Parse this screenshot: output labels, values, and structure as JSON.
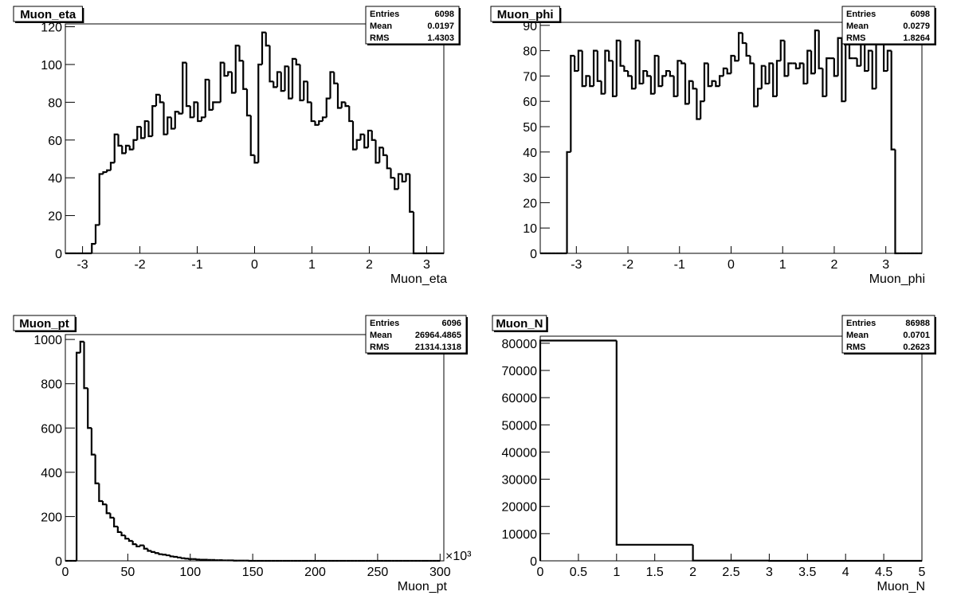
{
  "chart_data": [
    {
      "type": "histogram",
      "title": "Muon_eta",
      "x_label": "Muon_eta",
      "color": "#000000",
      "stats": [
        {
          "label": "Entries",
          "value": 6098
        },
        {
          "label": "Mean",
          "value": 0.0197
        },
        {
          "label": "RMS",
          "value": 1.4303
        }
      ],
      "bins": [
        -3.3,
        -3.234,
        -3.168,
        -3.102,
        -3.036,
        -2.97,
        -2.904,
        -2.838,
        -2.772,
        -2.706,
        -2.64,
        -2.574,
        -2.508,
        -2.442,
        -2.376,
        -2.31,
        -2.244,
        -2.178,
        -2.112,
        -2.046,
        -1.98,
        -1.914,
        -1.848,
        -1.782,
        -1.716,
        -1.65,
        -1.584,
        -1.518,
        -1.452,
        -1.386,
        -1.32,
        -1.254,
        -1.188,
        -1.122,
        -1.056,
        -0.99,
        -0.924,
        -0.858,
        -0.792,
        -0.726,
        -0.66,
        -0.594,
        -0.528,
        -0.462,
        -0.396,
        -0.33,
        -0.264,
        -0.198,
        -0.132,
        -0.066,
        0,
        0.066,
        0.132,
        0.198,
        0.264,
        0.33,
        0.396,
        0.462,
        0.528,
        0.594,
        0.66,
        0.726,
        0.792,
        0.858,
        0.924,
        0.99,
        1.056,
        1.122,
        1.188,
        1.254,
        1.32,
        1.386,
        1.452,
        1.518,
        1.584,
        1.65,
        1.716,
        1.782,
        1.848,
        1.914,
        1.98,
        2.046,
        2.112,
        2.178,
        2.244,
        2.31,
        2.376,
        2.442,
        2.508,
        2.574,
        2.64,
        2.706,
        2.772,
        2.838,
        2.904,
        2.97,
        3.036,
        3.102,
        3.168,
        3.234,
        3.3
      ],
      "values": [
        0,
        0,
        0,
        0,
        0,
        0,
        0,
        5,
        15,
        42,
        43,
        44,
        48,
        63,
        57,
        53,
        57,
        55,
        60,
        67,
        61,
        70,
        62,
        78,
        84,
        80,
        63,
        72,
        66,
        75,
        74,
        101,
        78,
        72,
        80,
        70,
        72,
        92,
        76,
        80,
        80,
        101,
        94,
        96,
        85,
        110,
        102,
        87,
        73,
        52,
        48,
        100,
        117,
        110,
        91,
        88,
        96,
        86,
        99,
        82,
        103,
        100,
        81,
        91,
        80,
        70,
        68,
        70,
        72,
        82,
        96,
        90,
        77,
        80,
        78,
        70,
        55,
        60,
        63,
        56,
        65,
        60,
        48,
        56,
        52,
        45,
        40,
        34,
        42,
        38,
        42,
        22,
        0,
        0,
        0,
        0,
        0,
        0,
        0,
        0
      ],
      "xlim": [
        -3.3,
        3.3
      ],
      "ylim": [
        0,
        121.5
      ],
      "xticks": [
        -3,
        -2,
        -1,
        0,
        1,
        2,
        3
      ],
      "yticks": [
        0,
        20,
        40,
        60,
        80,
        100,
        120
      ]
    },
    {
      "type": "histogram",
      "title": "Muon_phi",
      "x_label": "Muon_phi",
      "color": "#000000",
      "stats": [
        {
          "label": "Entries",
          "value": 6098
        },
        {
          "label": "Mean",
          "value": 0.0279
        },
        {
          "label": "RMS",
          "value": 1.8264
        }
      ],
      "bins": [
        -3.7,
        -3.626,
        -3.552,
        -3.478,
        -3.404,
        -3.33,
        -3.256,
        -3.182,
        -3.108,
        -3.034,
        -2.96,
        -2.886,
        -2.812,
        -2.738,
        -2.664,
        -2.59,
        -2.516,
        -2.442,
        -2.368,
        -2.294,
        -2.22,
        -2.146,
        -2.072,
        -1.998,
        -1.924,
        -1.85,
        -1.776,
        -1.702,
        -1.628,
        -1.554,
        -1.48,
        -1.406,
        -1.332,
        -1.258,
        -1.184,
        -1.11,
        -1.036,
        -0.962,
        -0.888,
        -0.814,
        -0.74,
        -0.666,
        -0.592,
        -0.518,
        -0.444,
        -0.37,
        -0.296,
        -0.222,
        -0.148,
        -0.074,
        0,
        0.074,
        0.148,
        0.222,
        0.296,
        0.37,
        0.444,
        0.518,
        0.592,
        0.666,
        0.74,
        0.814,
        0.888,
        0.962,
        1.036,
        1.11,
        1.184,
        1.258,
        1.332,
        1.406,
        1.48,
        1.554,
        1.628,
        1.702,
        1.776,
        1.85,
        1.924,
        1.998,
        2.072,
        2.146,
        2.22,
        2.294,
        2.368,
        2.442,
        2.516,
        2.59,
        2.664,
        2.738,
        2.812,
        2.886,
        2.96,
        3.034,
        3.108,
        3.182,
        3.256,
        3.33,
        3.404,
        3.478,
        3.552,
        3.626,
        3.7
      ],
      "values": [
        0,
        0,
        0,
        0,
        0,
        0,
        0,
        40,
        78,
        72,
        80,
        66,
        70,
        66,
        80,
        68,
        63,
        80,
        76,
        62,
        84,
        74,
        72,
        70,
        65,
        84,
        67,
        72,
        70,
        63,
        78,
        66,
        70,
        72,
        70,
        62,
        76,
        75,
        59,
        68,
        65,
        53,
        60,
        75,
        66,
        68,
        66,
        70,
        73,
        71,
        78,
        76,
        87,
        83,
        78,
        75,
        58,
        65,
        74,
        67,
        75,
        62,
        76,
        84,
        70,
        75,
        75,
        73,
        75,
        67,
        80,
        71,
        88,
        73,
        62,
        77,
        77,
        70,
        85,
        60,
        85,
        77,
        77,
        74,
        85,
        72,
        80,
        65,
        88,
        90,
        72,
        80,
        41,
        0,
        0,
        0,
        0,
        0,
        0,
        0
      ],
      "xlim": [
        -3.7,
        3.7
      ],
      "ylim": [
        0,
        91.2
      ],
      "xticks": [
        -3,
        -2,
        -1,
        0,
        1,
        2,
        3
      ],
      "yticks": [
        0,
        10,
        20,
        30,
        40,
        50,
        60,
        70,
        80,
        90
      ]
    },
    {
      "type": "histogram",
      "title": "Muon_pt",
      "x_label": "Muon_pt",
      "x_multiplier": "×10³",
      "color": "#000000",
      "stats": [
        {
          "label": "Entries",
          "value": 6096
        },
        {
          "label": "Mean",
          "value": 26964.4865
        },
        {
          "label": "RMS",
          "value": 21314.1318
        }
      ],
      "bins": [
        0,
        3,
        6,
        9,
        12,
        15,
        18,
        21,
        24,
        27,
        30,
        33,
        36,
        39,
        42,
        45,
        48,
        51,
        54,
        57,
        60,
        63,
        66,
        69,
        72,
        75,
        78,
        81,
        84,
        87,
        90,
        93,
        96,
        99,
        102,
        105,
        108,
        111,
        114,
        117,
        120,
        123,
        126,
        129,
        132,
        135,
        138,
        141,
        144,
        147,
        150,
        153,
        156,
        159,
        162,
        165,
        168,
        171,
        174,
        177,
        180,
        183,
        186,
        189,
        192,
        195,
        198,
        201,
        204,
        207,
        210,
        213,
        216,
        219,
        222,
        225,
        228,
        231,
        234,
        237,
        240,
        243,
        246,
        249,
        252,
        255,
        258,
        261,
        264,
        267,
        270,
        273,
        276,
        279,
        282,
        285,
        288,
        291,
        294,
        297,
        300
      ],
      "values": [
        0,
        0,
        0,
        940,
        990,
        780,
        600,
        480,
        350,
        270,
        255,
        215,
        195,
        155,
        130,
        115,
        100,
        90,
        75,
        65,
        70,
        55,
        45,
        40,
        35,
        30,
        28,
        25,
        20,
        18,
        15,
        12,
        10,
        8,
        8,
        6,
        5,
        5,
        4,
        4,
        3,
        3,
        2,
        2,
        2,
        1,
        1,
        1,
        1,
        0,
        0,
        0,
        0,
        0,
        0,
        0,
        0,
        0,
        0,
        0,
        0,
        0,
        0,
        0,
        0,
        0,
        0,
        0,
        0,
        0,
        0,
        0,
        0,
        0,
        0,
        0,
        0,
        0,
        0,
        0,
        0,
        0,
        0,
        0,
        0,
        0,
        0,
        0,
        0,
        0,
        0,
        0,
        0,
        0,
        0,
        0,
        0,
        0,
        0,
        0
      ],
      "xlim": [
        0,
        303
      ],
      "ylim": [
        0,
        1022
      ],
      "xticks": [
        0,
        50,
        100,
        150,
        200,
        250,
        300
      ],
      "yticks": [
        0,
        200,
        400,
        600,
        800,
        1000
      ]
    },
    {
      "type": "histogram",
      "title": "Muon_N",
      "x_label": "Muon_N",
      "color": "#000000",
      "stats": [
        {
          "label": "Entries",
          "value": 86988
        },
        {
          "label": "Mean",
          "value": 0.0701
        },
        {
          "label": "RMS",
          "value": 0.2623
        }
      ],
      "bins": [
        0,
        1,
        2,
        3,
        4,
        5
      ],
      "values": [
        80984,
        5910,
        94,
        0,
        0
      ],
      "xlim": [
        0,
        5
      ],
      "ylim": [
        0,
        82600
      ],
      "xticks": [
        0,
        0.5,
        1,
        1.5,
        2,
        2.5,
        3,
        3.5,
        4,
        4.5,
        5
      ],
      "yticks": [
        0,
        10000,
        20000,
        30000,
        40000,
        50000,
        60000,
        70000,
        80000
      ]
    }
  ]
}
